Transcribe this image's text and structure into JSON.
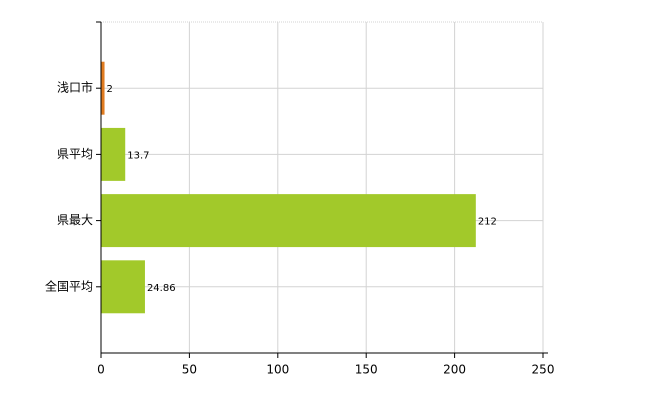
{
  "chart_data": {
    "type": "barh",
    "categories": [
      "浅口市",
      "県平均",
      "県最大",
      "全国平均"
    ],
    "values": [
      2,
      13.7,
      212,
      24.86
    ],
    "colors": [
      "#e07b20",
      "#a2c92a",
      "#a2c92a",
      "#a2c92a"
    ],
    "xlim": [
      0,
      250
    ],
    "xticks": [
      0,
      50,
      100,
      150,
      200,
      250
    ],
    "grid": true
  }
}
